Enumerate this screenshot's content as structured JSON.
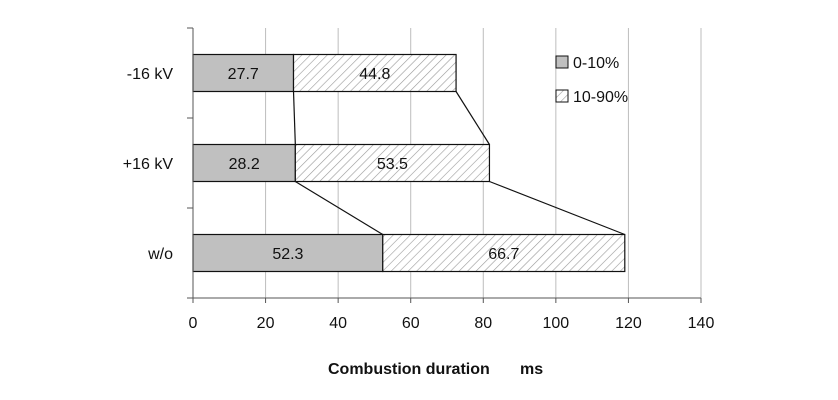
{
  "chart_data": {
    "type": "bar",
    "orientation": "horizontal",
    "stacked": true,
    "categories": [
      "-16 kV",
      "+16 kV",
      "w/o"
    ],
    "series": [
      {
        "name": "0-10%",
        "values": [
          27.7,
          28.2,
          52.3
        ],
        "labels": [
          "27.7",
          "28.2",
          "52.3"
        ],
        "color": "#c0c0c0",
        "pattern": "solid"
      },
      {
        "name": "10-90%",
        "values": [
          44.8,
          53.5,
          66.7
        ],
        "labels": [
          "44.8",
          "53.5",
          "66.7"
        ],
        "color": "#ffffff",
        "pattern": "diagonal-hatch"
      }
    ],
    "xlim": [
      0,
      140
    ],
    "x_ticks": [
      "0",
      "20",
      "40",
      "60",
      "80",
      "100",
      "120",
      "140"
    ],
    "xlabel_left": "Combustion duration",
    "xlabel_right": "ms",
    "connector_lines": true,
    "grid": "vertical",
    "legend_position": "top-right"
  }
}
